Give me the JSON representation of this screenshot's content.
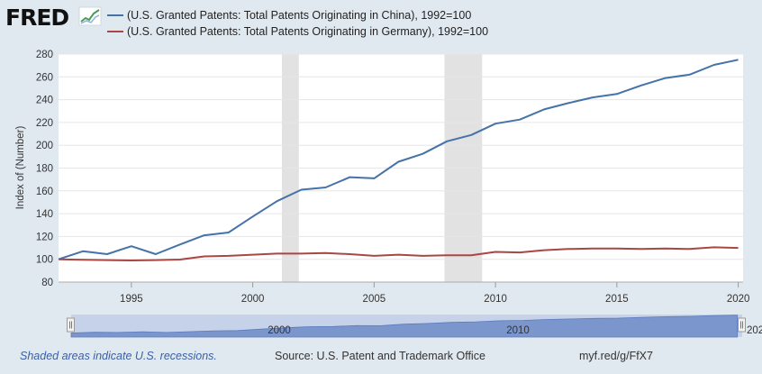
{
  "logo": {
    "text": "FRED"
  },
  "chart_data": {
    "type": "line",
    "series": [
      {
        "name": "(U.S. Granted Patents: Total Patents Originating in China), 1992=100",
        "color": "#4572a7",
        "x": [
          1992,
          1993,
          1994,
          1995,
          1996,
          1997,
          1998,
          1999,
          2000,
          2001,
          2002,
          2003,
          2004,
          2005,
          2006,
          2007,
          2008,
          2009,
          2010,
          2011,
          2012,
          2013,
          2014,
          2015,
          2016,
          2017,
          2018,
          2019,
          2020
        ],
        "values": [
          100,
          107,
          104.5,
          111.5,
          104.5,
          113,
          121,
          123.5,
          137.5,
          151,
          161,
          163,
          172,
          171,
          185.5,
          192.5,
          203.5,
          209,
          219,
          222.5,
          231.5,
          237,
          242,
          245,
          252.5,
          259,
          262,
          270.5,
          275
        ]
      },
      {
        "name": "(U.S. Granted Patents: Total Patents Originating in Germany), 1992=100",
        "color": "#aa4643",
        "x": [
          1992,
          1993,
          1994,
          1995,
          1996,
          1997,
          1998,
          1999,
          2000,
          2001,
          2002,
          2003,
          2004,
          2005,
          2006,
          2007,
          2008,
          2009,
          2010,
          2011,
          2012,
          2013,
          2014,
          2015,
          2016,
          2017,
          2018,
          2019,
          2020
        ],
        "values": [
          100,
          99.5,
          99.3,
          99,
          99.3,
          99.8,
          102.5,
          103,
          104,
          105,
          105,
          105.5,
          104.5,
          103,
          104,
          103,
          103.5,
          103.5,
          106.5,
          106,
          108,
          109,
          109.5,
          109.5,
          109,
          109.5,
          109,
          110.5,
          110
        ]
      }
    ],
    "recessions": [
      [
        2001.2,
        2001.9
      ],
      [
        2007.9,
        2009.45
      ]
    ],
    "xlim": [
      1992,
      2020.2
    ],
    "ylim": [
      80,
      280
    ],
    "yticks": [
      80,
      100,
      120,
      140,
      160,
      180,
      200,
      220,
      240,
      260,
      280
    ],
    "xticks": [
      1995,
      2000,
      2005,
      2010,
      2015,
      2020
    ],
    "ylabel": "Index of (Number)",
    "xlabel": ""
  },
  "navigator": {
    "labels": [
      "2000",
      "2010",
      "202"
    ]
  },
  "footer": {
    "note": "Shaded areas indicate U.S. recessions.",
    "source": "Source: U.S. Patent and Trademark Office",
    "link": "myf.red/g/FfX7"
  }
}
